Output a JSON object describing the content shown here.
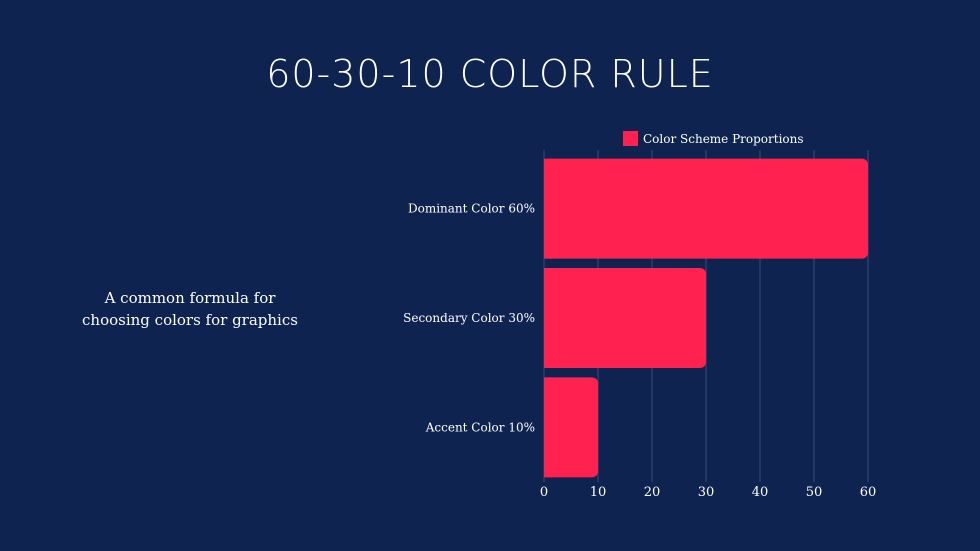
{
  "slide": {
    "title": "60-30-10 COLOR RULE",
    "subtitle": "A common formula for choosing colors for graphics"
  },
  "colors": {
    "background": "#0f2350",
    "bar": "#ff2250",
    "gridline": "#3a4e7a"
  },
  "chart_data": {
    "type": "bar",
    "orientation": "horizontal",
    "categories": [
      "Dominant Color 60%",
      "Secondary Color 30%",
      "Accent Color 10%"
    ],
    "series": [
      {
        "name": "Color Scheme Proportions",
        "values": [
          60,
          30,
          10
        ]
      }
    ],
    "title": "",
    "xlabel": "",
    "ylabel": "",
    "xlim": [
      0,
      60
    ],
    "xticks": [
      0,
      10,
      20,
      30,
      40,
      50,
      60
    ],
    "grid": "vertical",
    "legend": "top"
  }
}
